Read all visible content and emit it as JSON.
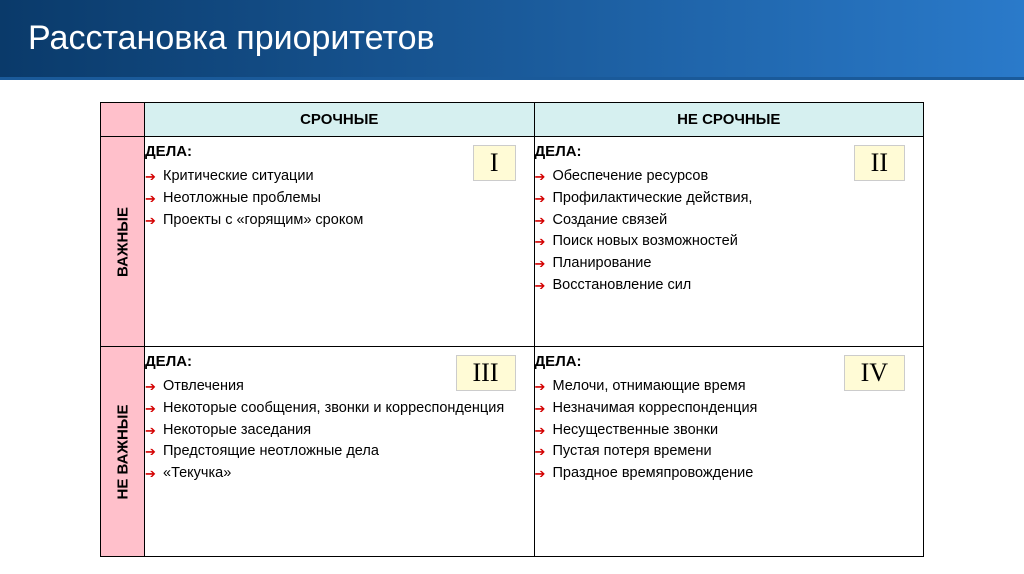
{
  "title": "Расстановка приоритетов",
  "colors": {
    "header_gradient_start": "#0a3a6a",
    "header_gradient_end": "#2a7aca",
    "row_header_bg": "#ffc0cb",
    "col_header_bg": "#d6f0f0",
    "badge_bg": "#fffbd6",
    "arrow_color": "#d40000",
    "border_color": "#000000",
    "text_color": "#000000"
  },
  "columns": [
    "СРОЧНЫЕ",
    "НЕ СРОЧНЫЕ"
  ],
  "rows": [
    "ВАЖНЫЕ",
    "НЕ ВАЖНЫЕ"
  ],
  "quadrants": {
    "q1": {
      "badge": "I",
      "label": "ДЕЛА:",
      "items": [
        "Критические ситуации",
        "Неотложные проблемы",
        "Проекты с «горящим» сроком"
      ]
    },
    "q2": {
      "badge": "II",
      "label": "ДЕЛА:",
      "items": [
        "Обеспечение ресурсов",
        "Профилактические действия,",
        "Создание связей",
        "Поиск новых возможностей",
        "Планирование",
        "Восстановление сил"
      ]
    },
    "q3": {
      "badge": "III",
      "label": "ДЕЛА:",
      "items": [
        "Отвлечения",
        "Некоторые сообщения, звонки  и корреспонденция",
        "Некоторые заседания",
        "Предстоящие неотложные дела",
        "«Текучка»"
      ]
    },
    "q4": {
      "badge": "IV",
      "label": "ДЕЛА:",
      "items": [
        "Мелочи, отнимающие время",
        "Незначимая корреспонденция",
        "Несущественные звонки",
        "Пустая потеря времени",
        "Праздное времяпровождение"
      ]
    }
  }
}
